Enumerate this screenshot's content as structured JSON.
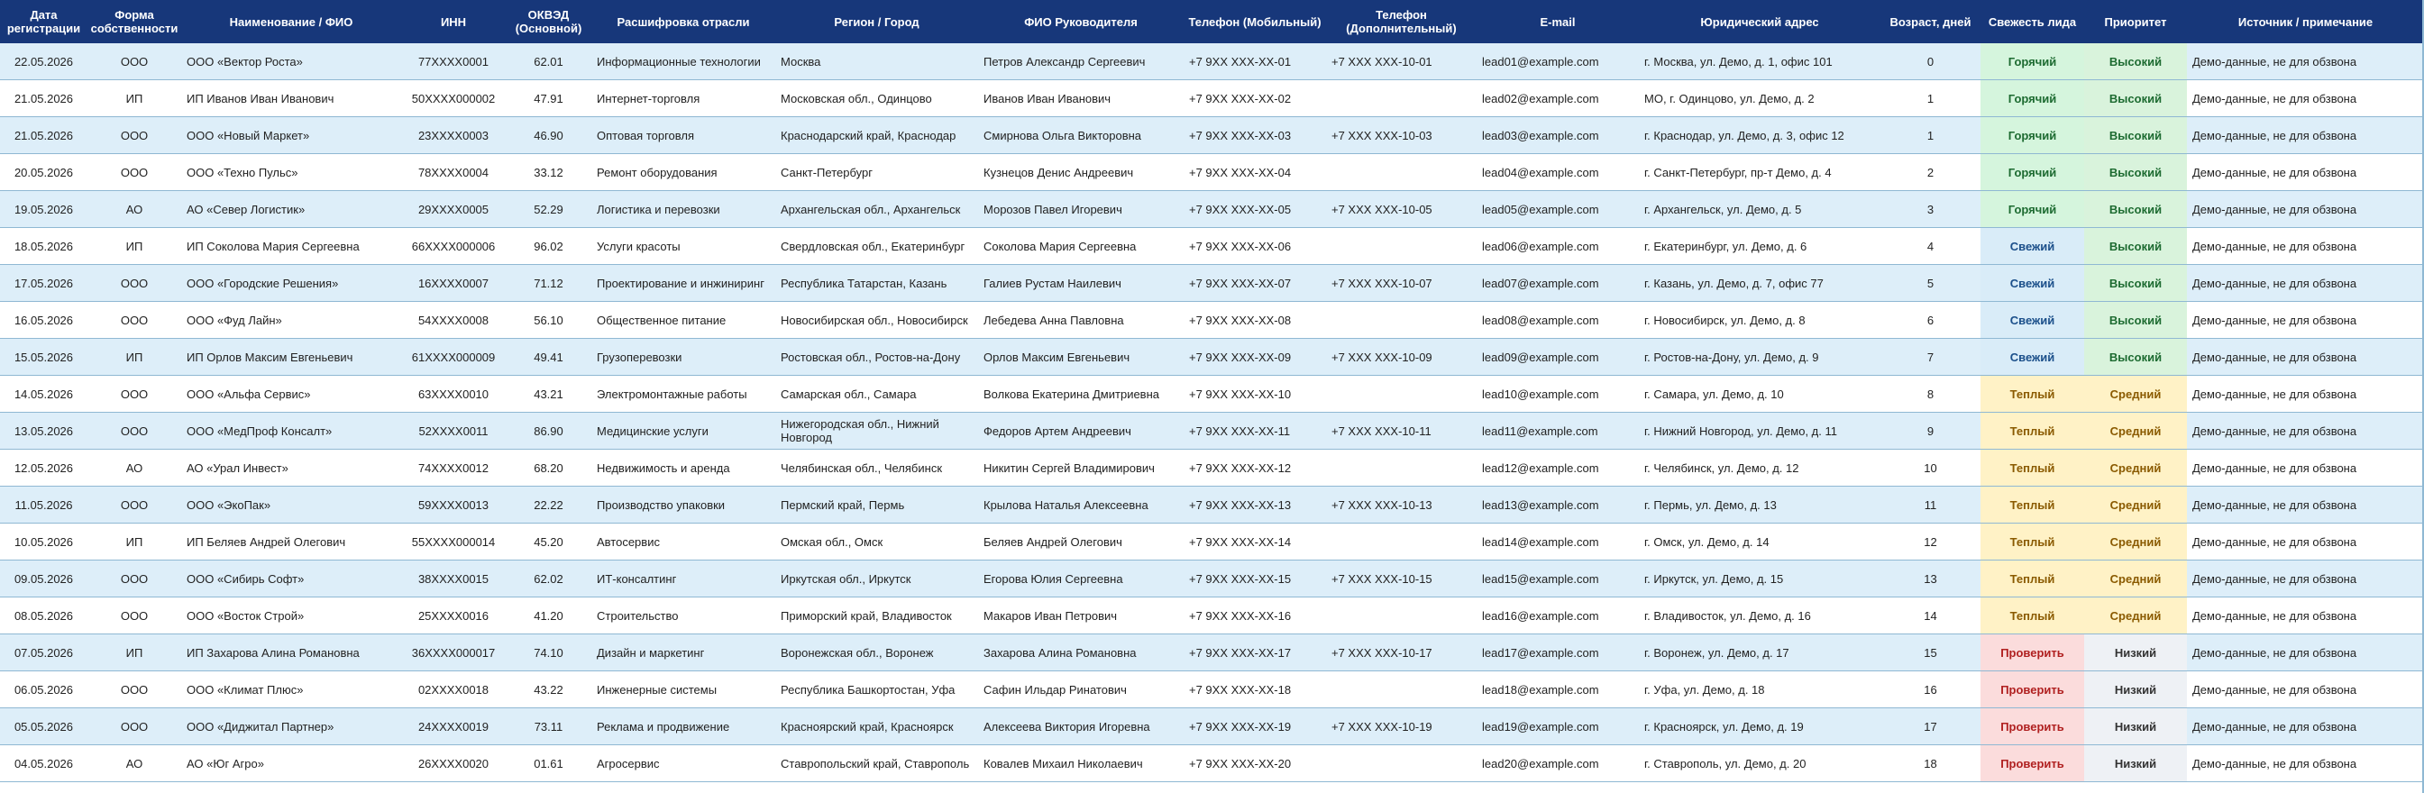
{
  "columns": [
    "Дата\nрегистрации",
    "Форма\nсобственности",
    "Наименование / ФИО",
    "ИНН",
    "ОКВЭД\n(Основной)",
    "Расшифровка отрасли",
    "Регион / Город",
    "ФИО Руководителя",
    "Телефон (Мобильный)",
    "Телефон\n(Дополнительный)",
    "E-mail",
    "Юридический адрес",
    "Возраст, дней",
    "Свежесть лида",
    "Приоритет",
    "Источник / примечание"
  ],
  "colors": {
    "header_bg": "#17377a",
    "row_alt_bg": "#ddeef9",
    "hot_bg": "#d5f5dd",
    "fresh_bg": "#d9ecf8",
    "warm_bg": "#fff2c6",
    "check_bg": "#fbdcdc"
  },
  "rows": [
    [
      "22.05.2026",
      "ООО",
      "ООО «Вектор Роста»",
      "77XXXX0001",
      "62.01",
      "Информационные технологии",
      "Москва",
      "Петров Александр Сергеевич",
      "+7 9XX XXX-XX-01",
      "+7 XXX XXX-10-01",
      "lead01@example.com",
      "г. Москва, ул. Демо, д. 1, офис 101",
      "0",
      "Горячий",
      "Высокий",
      "Демо-данные, не для обзвона"
    ],
    [
      "21.05.2026",
      "ИП",
      "ИП Иванов Иван Иванович",
      "50XXXX000002",
      "47.91",
      "Интернет-торговля",
      "Московская обл., Одинцово",
      "Иванов Иван Иванович",
      "+7 9XX XXX-XX-02",
      "",
      "lead02@example.com",
      "МО, г. Одинцово, ул. Демо, д. 2",
      "1",
      "Горячий",
      "Высокий",
      "Демо-данные, не для обзвона"
    ],
    [
      "21.05.2026",
      "ООО",
      "ООО «Новый Маркет»",
      "23XXXX0003",
      "46.90",
      "Оптовая торговля",
      "Краснодарский край, Краснодар",
      "Смирнова Ольга Викторовна",
      "+7 9XX XXX-XX-03",
      "+7 XXX XXX-10-03",
      "lead03@example.com",
      "г. Краснодар, ул. Демо, д. 3, офис 12",
      "1",
      "Горячий",
      "Высокий",
      "Демо-данные, не для обзвона"
    ],
    [
      "20.05.2026",
      "ООО",
      "ООО «Техно Пульс»",
      "78XXXX0004",
      "33.12",
      "Ремонт оборудования",
      "Санкт-Петербург",
      "Кузнецов Денис Андреевич",
      "+7 9XX XXX-XX-04",
      "",
      "lead04@example.com",
      "г. Санкт-Петербург, пр-т Демо, д. 4",
      "2",
      "Горячий",
      "Высокий",
      "Демо-данные, не для обзвона"
    ],
    [
      "19.05.2026",
      "АО",
      "АО «Север Логистик»",
      "29XXXX0005",
      "52.29",
      "Логистика и перевозки",
      "Архангельская обл., Архангельск",
      "Морозов Павел Игоревич",
      "+7 9XX XXX-XX-05",
      "+7 XXX XXX-10-05",
      "lead05@example.com",
      "г. Архангельск, ул. Демо, д. 5",
      "3",
      "Горячий",
      "Высокий",
      "Демо-данные, не для обзвона"
    ],
    [
      "18.05.2026",
      "ИП",
      "ИП Соколова Мария Сергеевна",
      "66XXXX000006",
      "96.02",
      "Услуги красоты",
      "Свердловская обл., Екатеринбург",
      "Соколова Мария Сергеевна",
      "+7 9XX XXX-XX-06",
      "",
      "lead06@example.com",
      "г. Екатеринбург, ул. Демо, д. 6",
      "4",
      "Свежий",
      "Высокий",
      "Демо-данные, не для обзвона"
    ],
    [
      "17.05.2026",
      "ООО",
      "ООО «Городские Решения»",
      "16XXXX0007",
      "71.12",
      "Проектирование и инжиниринг",
      "Республика Татарстан, Казань",
      "Галиев Рустам Наилевич",
      "+7 9XX XXX-XX-07",
      "+7 XXX XXX-10-07",
      "lead07@example.com",
      "г. Казань, ул. Демо, д. 7, офис 77",
      "5",
      "Свежий",
      "Высокий",
      "Демо-данные, не для обзвона"
    ],
    [
      "16.05.2026",
      "ООО",
      "ООО «Фуд Лайн»",
      "54XXXX0008",
      "56.10",
      "Общественное питание",
      "Новосибирская обл., Новосибирск",
      "Лебедева Анна Павловна",
      "+7 9XX XXX-XX-08",
      "",
      "lead08@example.com",
      "г. Новосибирск, ул. Демо, д. 8",
      "6",
      "Свежий",
      "Высокий",
      "Демо-данные, не для обзвона"
    ],
    [
      "15.05.2026",
      "ИП",
      "ИП Орлов Максим Евгеньевич",
      "61XXXX000009",
      "49.41",
      "Грузоперевозки",
      "Ростовская обл., Ростов-на-Дону",
      "Орлов Максим Евгеньевич",
      "+7 9XX XXX-XX-09",
      "+7 XXX XXX-10-09",
      "lead09@example.com",
      "г. Ростов-на-Дону, ул. Демо, д. 9",
      "7",
      "Свежий",
      "Высокий",
      "Демо-данные, не для обзвона"
    ],
    [
      "14.05.2026",
      "ООО",
      "ООО «Альфа Сервис»",
      "63XXXX0010",
      "43.21",
      "Электромонтажные работы",
      "Самарская обл., Самара",
      "Волкова Екатерина Дмитриевна",
      "+7 9XX XXX-XX-10",
      "",
      "lead10@example.com",
      "г. Самара, ул. Демо, д. 10",
      "8",
      "Теплый",
      "Средний",
      "Демо-данные, не для обзвона"
    ],
    [
      "13.05.2026",
      "ООО",
      "ООО «МедПроф Консалт»",
      "52XXXX0011",
      "86.90",
      "Медицинские услуги",
      "Нижегородская обл., Нижний Новгород",
      "Федоров Артем Андреевич",
      "+7 9XX XXX-XX-11",
      "+7 XXX XXX-10-11",
      "lead11@example.com",
      "г. Нижний Новгород, ул. Демо, д. 11",
      "9",
      "Теплый",
      "Средний",
      "Демо-данные, не для обзвона"
    ],
    [
      "12.05.2026",
      "АО",
      "АО «Урал Инвест»",
      "74XXXX0012",
      "68.20",
      "Недвижимость и аренда",
      "Челябинская обл., Челябинск",
      "Никитин Сергей Владимирович",
      "+7 9XX XXX-XX-12",
      "",
      "lead12@example.com",
      "г. Челябинск, ул. Демо, д. 12",
      "10",
      "Теплый",
      "Средний",
      "Демо-данные, не для обзвона"
    ],
    [
      "11.05.2026",
      "ООО",
      "ООО «ЭкоПак»",
      "59XXXX0013",
      "22.22",
      "Производство упаковки",
      "Пермский край, Пермь",
      "Крылова Наталья Алексеевна",
      "+7 9XX XXX-XX-13",
      "+7 XXX XXX-10-13",
      "lead13@example.com",
      "г. Пермь, ул. Демо, д. 13",
      "11",
      "Теплый",
      "Средний",
      "Демо-данные, не для обзвона"
    ],
    [
      "10.05.2026",
      "ИП",
      "ИП Беляев Андрей Олегович",
      "55XXXX000014",
      "45.20",
      "Автосервис",
      "Омская обл., Омск",
      "Беляев Андрей Олегович",
      "+7 9XX XXX-XX-14",
      "",
      "lead14@example.com",
      "г. Омск, ул. Демо, д. 14",
      "12",
      "Теплый",
      "Средний",
      "Демо-данные, не для обзвона"
    ],
    [
      "09.05.2026",
      "ООО",
      "ООО «Сибирь Софт»",
      "38XXXX0015",
      "62.02",
      "ИТ-консалтинг",
      "Иркутская обл., Иркутск",
      "Егорова Юлия Сергеевна",
      "+7 9XX XXX-XX-15",
      "+7 XXX XXX-10-15",
      "lead15@example.com",
      "г. Иркутск, ул. Демо, д. 15",
      "13",
      "Теплый",
      "Средний",
      "Демо-данные, не для обзвона"
    ],
    [
      "08.05.2026",
      "ООО",
      "ООО «Восток Строй»",
      "25XXXX0016",
      "41.20",
      "Строительство",
      "Приморский край, Владивосток",
      "Макаров Иван Петрович",
      "+7 9XX XXX-XX-16",
      "",
      "lead16@example.com",
      "г. Владивосток, ул. Демо, д. 16",
      "14",
      "Теплый",
      "Средний",
      "Демо-данные, не для обзвона"
    ],
    [
      "07.05.2026",
      "ИП",
      "ИП Захарова Алина Романовна",
      "36XXXX000017",
      "74.10",
      "Дизайн и маркетинг",
      "Воронежская обл., Воронеж",
      "Захарова Алина Романовна",
      "+7 9XX XXX-XX-17",
      "+7 XXX XXX-10-17",
      "lead17@example.com",
      "г. Воронеж, ул. Демо, д. 17",
      "15",
      "Проверить",
      "Низкий",
      "Демо-данные, не для обзвона"
    ],
    [
      "06.05.2026",
      "ООО",
      "ООО «Климат Плюс»",
      "02XXXX0018",
      "43.22",
      "Инженерные системы",
      "Республика Башкортостан, Уфа",
      "Сафин Ильдар Ринатович",
      "+7 9XX XXX-XX-18",
      "",
      "lead18@example.com",
      "г. Уфа, ул. Демо, д. 18",
      "16",
      "Проверить",
      "Низкий",
      "Демо-данные, не для обзвона"
    ],
    [
      "05.05.2026",
      "ООО",
      "ООО «Диджитал Партнер»",
      "24XXXX0019",
      "73.11",
      "Реклама и продвижение",
      "Красноярский край, Красноярск",
      "Алексеева Виктория Игоревна",
      "+7 9XX XXX-XX-19",
      "+7 XXX XXX-10-19",
      "lead19@example.com",
      "г. Красноярск, ул. Демо, д. 19",
      "17",
      "Проверить",
      "Низкий",
      "Демо-данные, не для обзвона"
    ],
    [
      "04.05.2026",
      "АО",
      "АО «Юг Агро»",
      "26XXXX0020",
      "01.61",
      "Агросервис",
      "Ставропольский край, Ставрополь",
      "Ковалев Михаил Николаевич",
      "+7 9XX XXX-XX-20",
      "",
      "lead20@example.com",
      "г. Ставрополь, ул. Демо, д. 20",
      "18",
      "Проверить",
      "Низкий",
      "Демо-данные, не для обзвона"
    ]
  ]
}
